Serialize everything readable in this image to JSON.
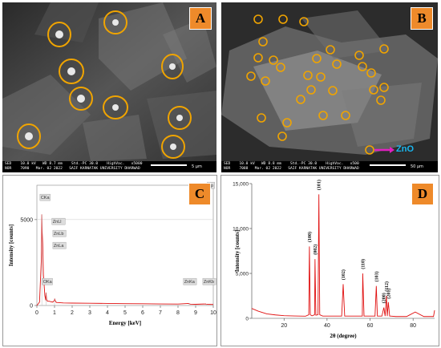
{
  "panels": {
    "a": {
      "letter": "A",
      "info_row1": "SED    10.0 kV   WD 8.7 mm    Std.-PC 30.0    HighVac.   x5000",
      "info_row2": "NOR    7090   Mar. 02 2022   SAIF KARNATAK UNIVERSITY DHARWAD",
      "scale_label": "5 μm"
    },
    "b": {
      "letter": "B",
      "info_row1": "SED    10.0 kV   WD 8.8 mm    Std.-PC 30.0    HighVac.   x500",
      "info_row2": "NOR    7088   Mar. 02 2022   SAIF KARNATAK UNIVERSITY DHARWAD",
      "scale_label": "50 μm",
      "annotation": "ZnO",
      "annotation_color": "#e020c0"
    },
    "c": {
      "letter": "C"
    },
    "d": {
      "letter": "D"
    }
  },
  "chart_data": [
    {
      "type": "line",
      "panel": "C",
      "xlabel": "Energy [keV]",
      "ylabel": "Intensity [counts]",
      "xlim": [
        0,
        10
      ],
      "ylim": [
        0,
        7000
      ],
      "xticks": [
        "0",
        "1",
        "2",
        "3",
        "4",
        "5",
        "6",
        "7",
        "8",
        "9",
        "10"
      ],
      "yticks": [
        "0",
        "5000"
      ],
      "series_color": "#e01010",
      "x": [
        0,
        0.15,
        0.25,
        0.28,
        0.3,
        0.33,
        0.37,
        0.45,
        0.5,
        0.52,
        0.55,
        0.6,
        0.7,
        0.8,
        0.9,
        1.0,
        1.01,
        1.03,
        1.1,
        1.5,
        2,
        3,
        4,
        5,
        6,
        7,
        8,
        8.6,
        8.63,
        8.7,
        9,
        9.57,
        9.6,
        10
      ],
      "y": [
        0,
        200,
        2600,
        5300,
        4300,
        3600,
        1800,
        600,
        300,
        750,
        350,
        250,
        250,
        220,
        200,
        300,
        400,
        300,
        180,
        150,
        140,
        130,
        120,
        110,
        100,
        90,
        85,
        120,
        100,
        80,
        70,
        90,
        70,
        60
      ],
      "peak_labels": [
        "CKa",
        "OKa",
        "ZnLl",
        "ZnLb",
        "ZnLa",
        "ZnKa",
        "ZnKb",
        "Sp"
      ]
    },
    {
      "type": "line",
      "panel": "D",
      "xlabel": "2θ (degree)",
      "ylabel": "Intensity [counts]",
      "xlim": [
        5,
        90
      ],
      "ylim": [
        0,
        15000
      ],
      "xticks": [
        "20",
        "40",
        "60",
        "80"
      ],
      "yticks": [
        "0",
        "5,000",
        "10,000",
        "15,000"
      ],
      "series_color": "#e01010",
      "x": [
        5,
        8,
        12,
        16,
        20,
        25,
        30,
        31.5,
        31.8,
        32.2,
        33,
        34.2,
        34.4,
        34.8,
        35.8,
        36.2,
        36.6,
        38,
        46.8,
        47.5,
        48.2,
        55,
        56.4,
        56.6,
        57.2,
        62.3,
        62.9,
        63.4,
        65.5,
        66.4,
        67,
        67.6,
        68,
        68.5,
        69.1,
        69.5,
        72,
        77,
        81,
        85,
        89.5,
        90
      ],
      "y": [
        1100,
        800,
        500,
        380,
        300,
        260,
        240,
        400,
        8000,
        400,
        280,
        400,
        6600,
        350,
        400,
        13800,
        400,
        250,
        250,
        3800,
        250,
        250,
        250,
        5000,
        250,
        250,
        3600,
        250,
        250,
        1200,
        250,
        2500,
        250,
        1800,
        250,
        250,
        200,
        200,
        700,
        200,
        200,
        900
      ],
      "peak_labels": [
        "(100)",
        "(002)",
        "(101)",
        "(102)",
        "(110)",
        "(103)",
        "(200)",
        "(112)",
        "(201)"
      ]
    }
  ]
}
